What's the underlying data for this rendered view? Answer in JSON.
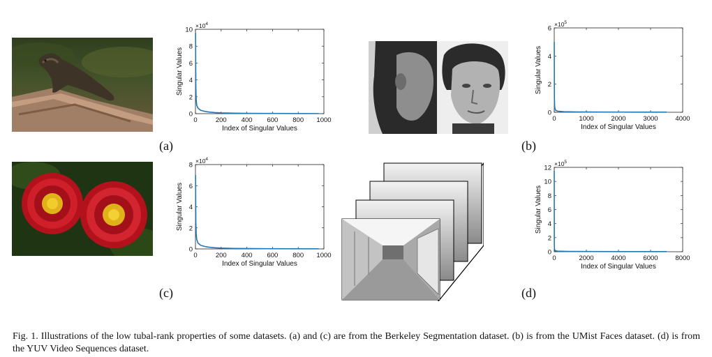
{
  "panels": {
    "a": {
      "label": "(a)"
    },
    "b": {
      "label": "(b)"
    },
    "c": {
      "label": "(c)"
    },
    "d": {
      "label": "(d)"
    }
  },
  "caption": {
    "text": "Fig. 1.  Illustrations of the low tubal-rank properties of some datasets. (a) and (c) are from the Berkeley Segmentation dataset. (b) is from the UMist Faces dataset. (d) is from the YUV Video Sequences dataset."
  },
  "colors": {
    "line": "#1f77b4",
    "axis": "#222222"
  },
  "chart_data": [
    {
      "id": "a",
      "type": "line",
      "xlabel": "Index of Singular Values",
      "ylabel": "Singular Values",
      "exponent_label": "×10",
      "exponent": "4",
      "xlim": [
        0,
        1000
      ],
      "ylim": [
        0,
        10
      ],
      "xticks": [
        0,
        200,
        400,
        600,
        800,
        1000
      ],
      "yticks": [
        0,
        2,
        4,
        6,
        8,
        10
      ],
      "x": [
        1,
        3,
        6,
        10,
        20,
        40,
        70,
        100,
        150,
        200,
        300,
        400,
        600,
        800,
        960
      ],
      "y": [
        9.6,
        3.2,
        1.6,
        1.0,
        0.65,
        0.4,
        0.28,
        0.2,
        0.13,
        0.09,
        0.06,
        0.04,
        0.025,
        0.015,
        0.01
      ]
    },
    {
      "id": "b",
      "type": "line",
      "xlabel": "Index of Singular Values",
      "ylabel": "Singular Values",
      "exponent_label": "×10",
      "exponent": "5",
      "xlim": [
        0,
        4000
      ],
      "ylim": [
        0,
        6
      ],
      "xticks": [
        0,
        1000,
        2000,
        3000,
        4000
      ],
      "yticks": [
        0,
        2,
        4,
        6
      ],
      "x": [
        1,
        5,
        15,
        40,
        100,
        300,
        700,
        1500,
        2500,
        3500
      ],
      "y": [
        5.0,
        1.0,
        0.35,
        0.15,
        0.08,
        0.04,
        0.025,
        0.015,
        0.01,
        0.008
      ]
    },
    {
      "id": "c",
      "type": "line",
      "xlabel": "Index of Singular Values",
      "ylabel": "Singular Values",
      "exponent_label": "×10",
      "exponent": "4",
      "xlim": [
        0,
        1000
      ],
      "ylim": [
        0,
        8
      ],
      "xticks": [
        0,
        200,
        400,
        600,
        800,
        1000
      ],
      "yticks": [
        0,
        2,
        4,
        6,
        8
      ],
      "x": [
        1,
        3,
        6,
        10,
        20,
        40,
        70,
        100,
        150,
        200,
        300,
        400,
        600,
        800,
        960
      ],
      "y": [
        7.0,
        2.6,
        1.4,
        0.9,
        0.55,
        0.35,
        0.24,
        0.17,
        0.11,
        0.08,
        0.05,
        0.035,
        0.02,
        0.012,
        0.01
      ]
    },
    {
      "id": "d",
      "type": "line",
      "xlabel": "Index of Singular Values",
      "ylabel": "Singular Values",
      "exponent_label": "×10",
      "exponent": "5",
      "xlim": [
        0,
        8000
      ],
      "ylim": [
        0,
        12
      ],
      "xticks": [
        0,
        2000,
        4000,
        6000,
        8000
      ],
      "yticks": [
        0,
        2,
        4,
        6,
        8,
        10,
        12
      ],
      "x": [
        1,
        5,
        15,
        50,
        200,
        800,
        2000,
        4000,
        7000
      ],
      "y": [
        11.5,
        1.2,
        0.4,
        0.15,
        0.08,
        0.05,
        0.03,
        0.02,
        0.015
      ]
    }
  ]
}
